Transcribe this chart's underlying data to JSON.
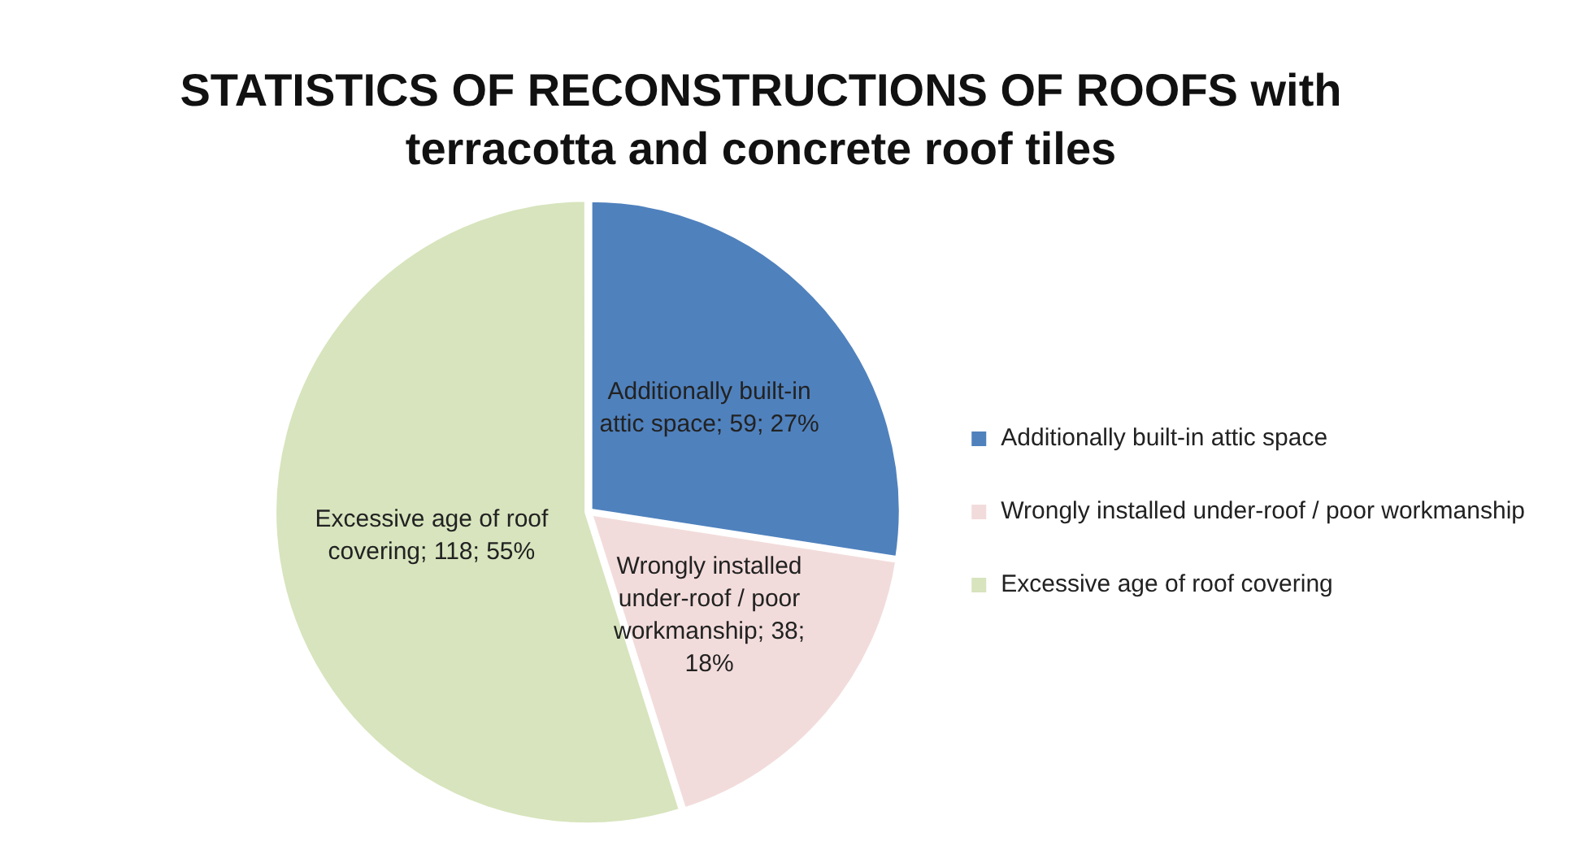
{
  "chart_data": {
    "type": "pie",
    "title": "STATISTICS OF RECONSTRUCTIONS OF ROOFS with terracotta and concrete roof tiles",
    "categories": [
      "Additionally built-in attic space",
      "Wrongly installed under-roof / poor workmanship",
      "Excessive age of roof covering"
    ],
    "values": [
      59,
      38,
      118
    ],
    "colors": [
      "#4f81bd",
      "#f2dcdb",
      "#d7e4bd"
    ],
    "value_labels": [
      "Additionally built-in attic space; 59; 27%",
      "Wrongly installed under-roof / poor workmanship; 38; 18%",
      "Excessive age of roof covering; 118; 55%"
    ],
    "legend": "right"
  }
}
